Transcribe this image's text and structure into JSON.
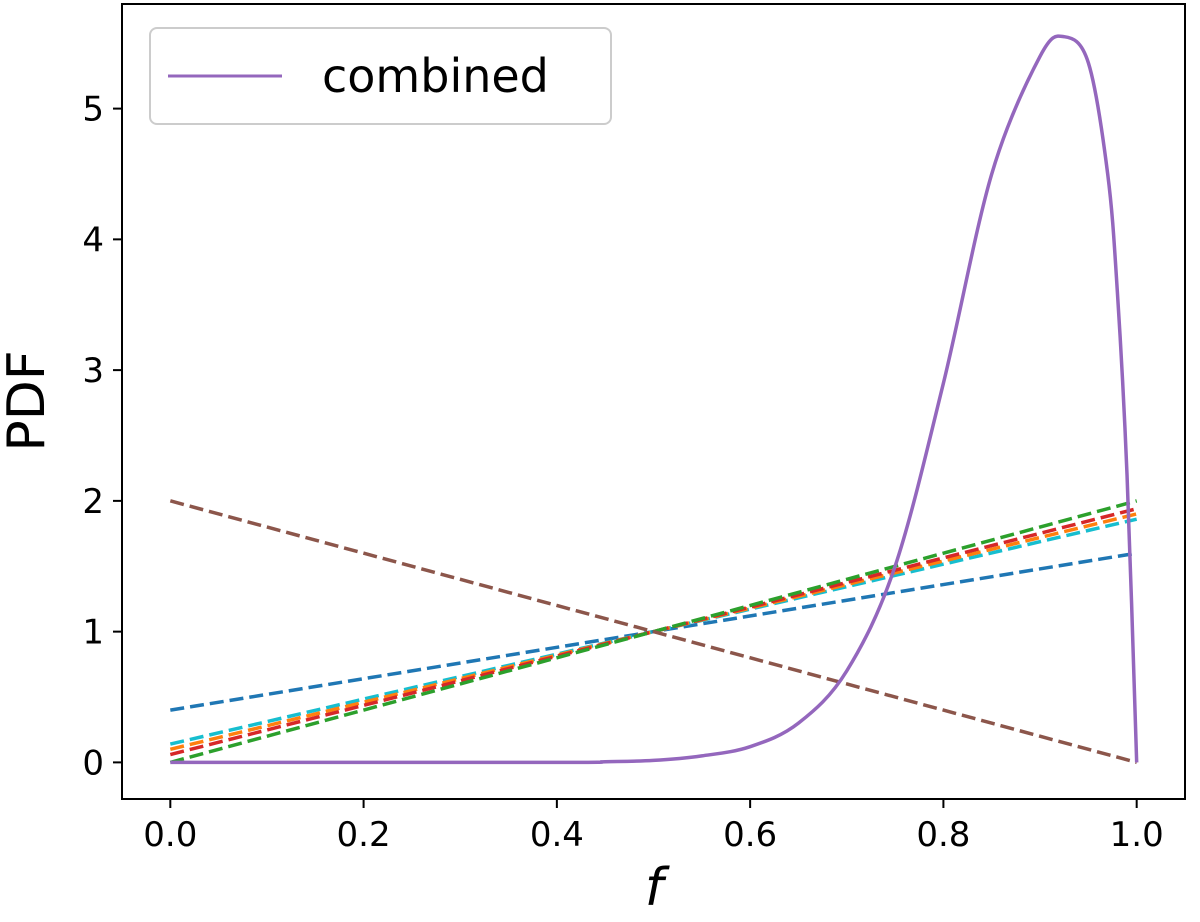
{
  "chart_data": {
    "type": "line",
    "title": "",
    "xlabel": "f",
    "ylabel": "PDF",
    "xlim": [
      -0.05,
      1.05
    ],
    "ylim": [
      -0.28,
      5.8
    ],
    "xticks": [
      "0.0",
      "0.2",
      "0.4",
      "0.6",
      "0.8",
      "1.0"
    ],
    "yticks": [
      "0",
      "1",
      "2",
      "3",
      "4",
      "5"
    ],
    "grid": false,
    "legend": {
      "position": "top-left",
      "entries": [
        "combined"
      ]
    },
    "colors": {
      "combined": "#9467bd",
      "blue": "#1f77b4",
      "cyan": "#17becf",
      "orange": "#ff7f0e",
      "red": "#d62728",
      "green": "#2ca02c",
      "brown": "#8c564b"
    },
    "series": [
      {
        "name": "blue",
        "style": "dashed",
        "x": [
          0.0,
          1.0
        ],
        "y": [
          0.4,
          1.6
        ]
      },
      {
        "name": "cyan",
        "style": "dashed",
        "x": [
          0.0,
          1.0
        ],
        "y": [
          0.14,
          1.86
        ]
      },
      {
        "name": "orange",
        "style": "dashed",
        "x": [
          0.0,
          1.0
        ],
        "y": [
          0.1,
          1.9
        ]
      },
      {
        "name": "red",
        "style": "dashed",
        "x": [
          0.0,
          1.0
        ],
        "y": [
          0.06,
          1.94
        ]
      },
      {
        "name": "green",
        "style": "dashed",
        "x": [
          0.0,
          1.0
        ],
        "y": [
          0.0,
          2.0
        ]
      },
      {
        "name": "brown",
        "style": "dashed",
        "x": [
          0.0,
          1.0
        ],
        "y": [
          2.0,
          0.0
        ]
      },
      {
        "name": "combined",
        "style": "solid",
        "x": [
          0.0,
          0.4,
          0.45,
          0.5,
          0.55,
          0.6,
          0.65,
          0.7,
          0.75,
          0.8,
          0.85,
          0.9,
          0.925,
          0.95,
          0.97,
          0.98,
          0.99,
          1.0
        ],
        "y": [
          0.0,
          0.0,
          0.005,
          0.015,
          0.05,
          0.12,
          0.3,
          0.7,
          1.5,
          2.9,
          4.5,
          5.4,
          5.55,
          5.35,
          4.5,
          3.6,
          2.2,
          0.0
        ]
      }
    ]
  }
}
